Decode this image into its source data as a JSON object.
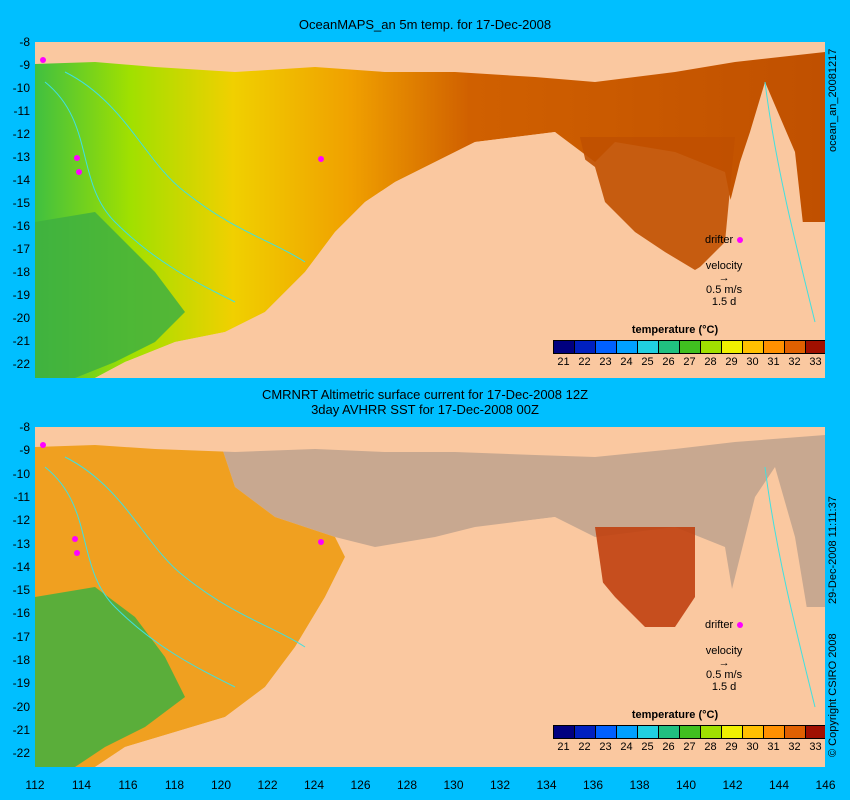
{
  "top_title": "OceanMAPS_an 5m temp. for 17-Dec-2008",
  "bottom_title_line1": "CMRNRT Altimetric surface current for 17-Dec-2008 12Z",
  "bottom_title_line2": "3day AVHRR SST for 17-Dec-2008 00Z",
  "side_label_top": "ocean_an_20081217",
  "side_label_bottom_right": "29-Dec-2008 11:11:37",
  "side_label_bottom_left": "© Copyright CSIRO 2008",
  "y_ticks": [
    "-8",
    "-9",
    "-10",
    "-11",
    "-12",
    "-13",
    "-14",
    "-15",
    "-16",
    "-17",
    "-18",
    "-19",
    "-20",
    "-21",
    "-22"
  ],
  "x_ticks": [
    "112",
    "114",
    "116",
    "118",
    "120",
    "122",
    "124",
    "126",
    "128",
    "130",
    "132",
    "134",
    "136",
    "138",
    "140",
    "142",
    "144",
    "146"
  ],
  "colorbar": {
    "title": "temperature (°C)",
    "labels": [
      "21",
      "22",
      "23",
      "24",
      "25",
      "26",
      "27",
      "28",
      "29",
      "30",
      "31",
      "32",
      "33"
    ],
    "colors": [
      "#000080",
      "#0020c0",
      "#0060ff",
      "#00a0ff",
      "#20d0e0",
      "#20c080",
      "#40c020",
      "#a0e000",
      "#f0f000",
      "#ffc000",
      "#ff9000",
      "#e06000",
      "#a01000"
    ]
  },
  "legend": {
    "drifter": "drifter",
    "velocity": "velocity",
    "speed": "0.5 m/s",
    "days": "1.5 d"
  },
  "colors": {
    "background": "#00bfff",
    "land": "#fac8a0",
    "nodata": "#c8a890",
    "drifter": "#ff00ff",
    "contour": "#40e0e0"
  }
}
